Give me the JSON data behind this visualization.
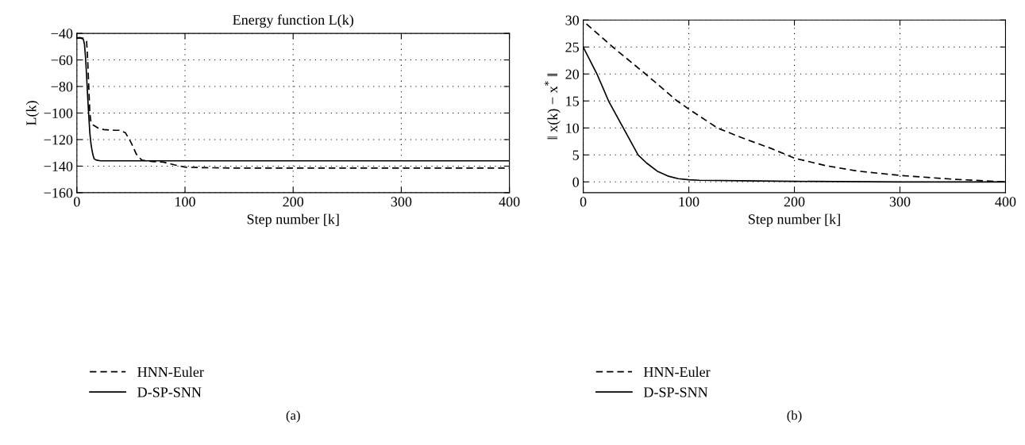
{
  "chart_data": [
    {
      "type": "line",
      "title": "Energy function L(k)",
      "xlabel": "Step number [k]",
      "ylabel": "L(k)",
      "xlim": [
        0,
        400
      ],
      "xticks": [
        0,
        100,
        200,
        300,
        400
      ],
      "ylim": [
        -160,
        -40
      ],
      "yticks": [
        -160,
        -140,
        -120,
        -100,
        -80,
        -60,
        -40
      ],
      "grid": true,
      "legend": "bottom left",
      "annotations": [
        "(a)"
      ],
      "series": [
        {
          "name": "HNN-Euler",
          "color": "#000000",
          "line_style": "dashed",
          "x": [
            0,
            3,
            6,
            9,
            10,
            11,
            12,
            13,
            15,
            20,
            25,
            35,
            40,
            45,
            50,
            55,
            60,
            70,
            80,
            90,
            100,
            120,
            150,
            200,
            300,
            400
          ],
          "values": [
            -43.5,
            -43.3,
            -43.8,
            -46,
            -60,
            -80,
            -100,
            -107,
            -109,
            -111.5,
            -112.5,
            -113,
            -113,
            -115,
            -122,
            -131,
            -135.5,
            -136.5,
            -137,
            -139,
            -140.8,
            -141.2,
            -141.5,
            -141.5,
            -141.5,
            -141.5
          ]
        },
        {
          "name": "D-SP-SNN",
          "color": "#000000",
          "line_style": "solid",
          "x": [
            0,
            3,
            6,
            7,
            8,
            9,
            10,
            11,
            12,
            13,
            14,
            15,
            16,
            18,
            22,
            30,
            100,
            200,
            300,
            400
          ],
          "values": [
            -43.5,
            -43.3,
            -44.5,
            -48,
            -58,
            -72,
            -88,
            -102,
            -115,
            -123,
            -128,
            -132,
            -134.5,
            -135.5,
            -136,
            -136,
            -136,
            -136,
            -136,
            -136
          ]
        }
      ]
    },
    {
      "type": "line",
      "xlabel": "Step number [k]",
      "ylabel": "‖ x(k) − x$^{*}$ ‖",
      "xlim": [
        0,
        400
      ],
      "xticks": [
        0,
        100,
        200,
        300,
        400
      ],
      "ylim": [
        -2,
        30
      ],
      "yticks": [
        0,
        5,
        10,
        15,
        20,
        25,
        30
      ],
      "grid": true,
      "legend": "bottom left",
      "annotations": [
        "(b)"
      ],
      "series": [
        {
          "name": "HNN-Euler",
          "color": "#000000",
          "line_style": "dashed",
          "x": [
            3,
            28,
            59,
            89,
            100,
            127,
            150,
            178,
            200,
            230,
            260,
            300,
            350,
            400
          ],
          "values": [
            29.3,
            25,
            20,
            15,
            13.5,
            10,
            8.2,
            6.2,
            4.4,
            3.0,
            2.0,
            1.2,
            0.5,
            0
          ]
        },
        {
          "name": "D-SP-SNN",
          "color": "#000000",
          "line_style": "solid",
          "x": [
            0,
            13,
            24,
            38,
            52,
            60,
            70,
            80,
            90,
            100,
            110,
            150,
            200,
            300,
            400
          ],
          "values": [
            25,
            20,
            15,
            10,
            5,
            3.5,
            2.0,
            1.1,
            0.6,
            0.4,
            0.3,
            0.2,
            0.1,
            0,
            0
          ]
        }
      ]
    }
  ]
}
